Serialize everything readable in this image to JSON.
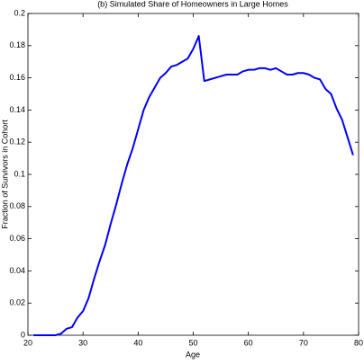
{
  "chart_data": {
    "type": "line",
    "title": "(b) Simulated Share of Homeowners in Large Homes",
    "x_label": "Age",
    "y_label": "Fraction of Survivors in Cohort",
    "x": [
      21,
      22,
      23,
      24,
      25,
      26,
      27,
      28,
      29,
      30,
      31,
      32,
      33,
      34,
      35,
      36,
      37,
      38,
      39,
      40,
      41,
      42,
      43,
      44,
      45,
      46,
      47,
      48,
      49,
      50,
      51,
      52,
      53,
      54,
      55,
      56,
      57,
      58,
      59,
      60,
      61,
      62,
      63,
      64,
      65,
      66,
      67,
      68,
      69,
      70,
      71,
      72,
      73,
      74,
      75,
      76,
      77,
      78,
      79
    ],
    "series": [
      {
        "color": "#0000ff",
        "values": [
          0,
          0,
          0,
          0,
          0,
          0.001,
          0.004,
          0.005,
          0.011,
          0.015,
          0.023,
          0.035,
          0.046,
          0.056,
          0.069,
          0.081,
          0.094,
          0.106,
          0.116,
          0.128,
          0.14,
          0.148,
          0.154,
          0.16,
          0.163,
          0.167,
          0.168,
          0.17,
          0.172,
          0.178,
          0.186,
          0.158,
          0.159,
          0.16,
          0.161,
          0.162,
          0.162,
          0.162,
          0.164,
          0.165,
          0.165,
          0.166,
          0.166,
          0.165,
          0.166,
          0.164,
          0.162,
          0.162,
          0.163,
          0.163,
          0.162,
          0.16,
          0.159,
          0.153,
          0.15,
          0.141,
          0.134,
          0.123,
          0.112
        ]
      }
    ],
    "xlim": [
      20,
      80
    ],
    "xticks": [
      20,
      30,
      40,
      50,
      60,
      70,
      80
    ],
    "ylim": [
      0,
      0.2
    ],
    "yticks": [
      0,
      0.02,
      0.04,
      0.06,
      0.08,
      0.1,
      0.12,
      0.14,
      0.16,
      0.18,
      0.2
    ]
  }
}
